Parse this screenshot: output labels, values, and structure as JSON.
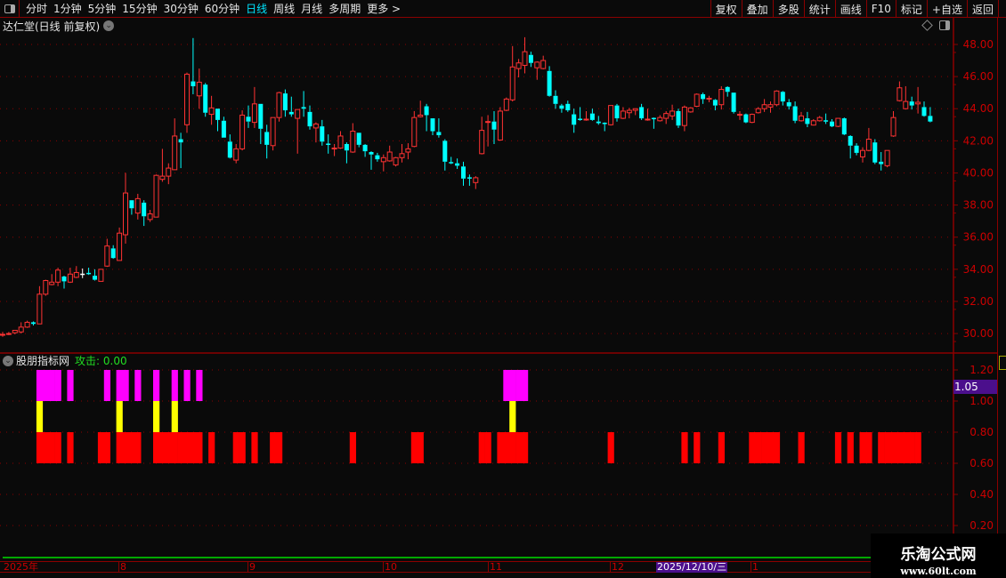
{
  "toolbar": {
    "periods": [
      "分时",
      "1分钟",
      "5分钟",
      "15分钟",
      "30分钟",
      "60分钟",
      "日线",
      "周线",
      "月线",
      "多周期",
      "更多 >"
    ],
    "active_period": "日线",
    "right_buttons": [
      "复权",
      "叠加",
      "多股",
      "统计",
      "画线",
      "F10",
      "标记",
      "+自选",
      "返回"
    ]
  },
  "main": {
    "title": "达仁堂(日线 前复权)",
    "price_axis": [
      "48.00",
      "46.00",
      "44.00",
      "42.00",
      "40.00",
      "38.00",
      "36.00",
      "34.00",
      "32.00",
      "30.00"
    ]
  },
  "indicator": {
    "name": "股朋指标网",
    "value_label": "攻击: 0.00",
    "current_value": "1.05",
    "axis": [
      "1.20",
      "1.00",
      "0.80",
      "0.60",
      "0.40",
      "0.20"
    ]
  },
  "date_axis": {
    "labels": [
      "2025年",
      "8",
      "9",
      "10",
      "11",
      "12",
      "1"
    ],
    "cursor_date": "2025/12/10/三"
  },
  "watermark": {
    "name": "乐淘公式网",
    "url": "www.60lt.com"
  },
  "colors": {
    "up": "#ff3333",
    "down": "#00ffff",
    "grid": "#8b0000",
    "magenta": "#ff00ff",
    "yellow": "#ffff00",
    "red": "#ff0000",
    "accent": "#00e5ff"
  },
  "chart_data": {
    "type": "candlestick",
    "ylim": [
      29.2,
      49.0
    ],
    "ohlc": [
      [
        29.9,
        30.1,
        29.8,
        29.95
      ],
      [
        29.95,
        30.1,
        29.9,
        30.0
      ],
      [
        30.05,
        30.2,
        29.95,
        30.2
      ],
      [
        30.1,
        30.7,
        30.0,
        30.4
      ],
      [
        30.4,
        30.8,
        30.35,
        30.7
      ],
      [
        30.7,
        30.75,
        30.5,
        30.6
      ],
      [
        30.6,
        32.95,
        30.6,
        32.45
      ],
      [
        32.45,
        33.35,
        32.35,
        33.3
      ],
      [
        33.05,
        33.7,
        33.0,
        33.2
      ],
      [
        33.2,
        34.1,
        32.95,
        33.95
      ],
      [
        33.55,
        33.6,
        32.8,
        33.25
      ],
      [
        33.2,
        34.1,
        33.15,
        33.7
      ],
      [
        33.5,
        34.2,
        33.45,
        33.8
      ],
      [
        33.7,
        34.05,
        33.45,
        33.7
      ],
      [
        33.75,
        34.1,
        33.65,
        33.7
      ],
      [
        33.6,
        34.0,
        33.3,
        33.35
      ],
      [
        33.25,
        34.0,
        33.25,
        34.0
      ],
      [
        34.2,
        35.9,
        34.15,
        35.45
      ],
      [
        35.3,
        35.5,
        34.65,
        34.7
      ],
      [
        34.55,
        36.6,
        34.55,
        36.25
      ],
      [
        36.15,
        40.0,
        35.6,
        38.75
      ],
      [
        38.3,
        38.3,
        37.4,
        37.8
      ],
      [
        37.5,
        38.7,
        37.1,
        38.4
      ],
      [
        38.15,
        38.3,
        36.7,
        37.3
      ],
      [
        37.1,
        37.7,
        36.95,
        37.45
      ],
      [
        37.25,
        39.9,
        37.25,
        39.85
      ],
      [
        39.6,
        41.5,
        39.45,
        39.8
      ],
      [
        39.8,
        40.6,
        39.3,
        40.3
      ],
      [
        40.2,
        43.4,
        40.2,
        42.3
      ],
      [
        42.1,
        42.5,
        40.3,
        41.9
      ],
      [
        43.0,
        46.25,
        42.5,
        46.15
      ],
      [
        45.7,
        48.4,
        44.9,
        45.4
      ],
      [
        44.8,
        46.5,
        44.0,
        45.65
      ],
      [
        45.5,
        45.6,
        43.5,
        43.75
      ],
      [
        43.65,
        44.8,
        43.0,
        44.05
      ],
      [
        44.0,
        44.0,
        42.6,
        43.3
      ],
      [
        43.25,
        43.5,
        42.2,
        42.2
      ],
      [
        41.95,
        42.4,
        40.9,
        40.95
      ],
      [
        40.8,
        41.8,
        40.6,
        41.5
      ],
      [
        41.5,
        43.9,
        41.4,
        43.6
      ],
      [
        43.5,
        44.2,
        42.8,
        43.2
      ],
      [
        43.15,
        45.35,
        42.8,
        44.3
      ],
      [
        44.3,
        44.3,
        41.8,
        42.75
      ],
      [
        42.55,
        43.0,
        40.9,
        41.75
      ],
      [
        41.7,
        43.45,
        41.4,
        43.45
      ],
      [
        43.45,
        45.05,
        43.2,
        45.0
      ],
      [
        44.95,
        45.2,
        43.5,
        43.9
      ],
      [
        43.8,
        44.75,
        43.5,
        43.65
      ],
      [
        43.4,
        43.95,
        41.2,
        43.95
      ],
      [
        44.1,
        45.1,
        43.5,
        44.0
      ],
      [
        43.8,
        44.2,
        42.7,
        42.9
      ],
      [
        42.8,
        43.15,
        41.9,
        43.05
      ],
      [
        42.9,
        43.3,
        41.7,
        41.95
      ],
      [
        41.8,
        42.4,
        41.2,
        41.75
      ],
      [
        41.5,
        41.8,
        41.05,
        41.55
      ],
      [
        41.55,
        42.6,
        41.5,
        42.3
      ],
      [
        41.8,
        41.9,
        40.6,
        41.4
      ],
      [
        41.3,
        43.1,
        41.25,
        42.6
      ],
      [
        42.5,
        42.5,
        41.6,
        41.75
      ],
      [
        41.75,
        41.8,
        41.0,
        41.35
      ],
      [
        41.3,
        41.35,
        40.2,
        41.15
      ],
      [
        41.1,
        41.25,
        40.7,
        40.85
      ],
      [
        40.7,
        41.15,
        40.1,
        40.95
      ],
      [
        40.75,
        41.7,
        40.7,
        41.3
      ],
      [
        40.5,
        41.0,
        40.4,
        40.95
      ],
      [
        40.95,
        41.8,
        40.65,
        41.2
      ],
      [
        41.3,
        41.85,
        40.85,
        41.5
      ],
      [
        41.65,
        43.85,
        41.6,
        43.45
      ],
      [
        43.5,
        44.5,
        43.45,
        43.6
      ],
      [
        44.15,
        44.3,
        42.6,
        43.6
      ],
      [
        43.4,
        43.4,
        42.35,
        42.6
      ],
      [
        42.55,
        43.4,
        42.2,
        42.35
      ],
      [
        42.0,
        42.1,
        40.15,
        40.7
      ],
      [
        40.65,
        41.0,
        40.55,
        40.6
      ],
      [
        40.6,
        40.9,
        40.25,
        40.45
      ],
      [
        40.4,
        40.7,
        39.2,
        39.65
      ],
      [
        39.7,
        39.9,
        39.2,
        39.65
      ],
      [
        39.4,
        39.8,
        39.0,
        39.7
      ],
      [
        41.2,
        43.5,
        41.15,
        42.65
      ],
      [
        43.15,
        43.6,
        41.65,
        43.2
      ],
      [
        43.2,
        43.85,
        41.8,
        42.7
      ],
      [
        42.05,
        44.1,
        42.0,
        43.85
      ],
      [
        43.9,
        44.7,
        43.85,
        44.6
      ],
      [
        44.55,
        47.9,
        44.45,
        46.6
      ],
      [
        46.5,
        47.1,
        45.95,
        46.85
      ],
      [
        46.7,
        48.45,
        46.2,
        47.55
      ],
      [
        47.35,
        47.55,
        46.6,
        46.85
      ],
      [
        46.55,
        46.95,
        45.8,
        46.9
      ],
      [
        46.5,
        47.3,
        46.45,
        47.0
      ],
      [
        46.35,
        46.65,
        44.75,
        44.8
      ],
      [
        44.8,
        45.15,
        44.0,
        44.3
      ],
      [
        44.2,
        44.3,
        43.75,
        44.0
      ],
      [
        44.3,
        44.5,
        43.8,
        43.9
      ],
      [
        43.65,
        44.0,
        42.5,
        43.0
      ],
      [
        43.35,
        44.1,
        43.25,
        43.3
      ],
      [
        43.3,
        43.85,
        43.25,
        43.35
      ],
      [
        43.7,
        44.0,
        43.25,
        43.3
      ],
      [
        43.2,
        43.55,
        43.0,
        43.1
      ],
      [
        43.1,
        43.15,
        42.6,
        43.05
      ],
      [
        43.0,
        44.2,
        42.95,
        44.2
      ],
      [
        44.2,
        44.3,
        43.2,
        43.4
      ],
      [
        43.4,
        44.1,
        43.35,
        43.85
      ],
      [
        43.75,
        44.05,
        43.4,
        43.9
      ],
      [
        43.9,
        44.0,
        43.6,
        44.0
      ],
      [
        44.1,
        44.3,
        43.3,
        43.4
      ],
      [
        43.3,
        44.0,
        43.25,
        43.35
      ],
      [
        43.4,
        43.45,
        42.75,
        43.35
      ],
      [
        43.25,
        43.6,
        43.2,
        43.45
      ],
      [
        43.4,
        43.85,
        43.05,
        43.7
      ],
      [
        43.55,
        44.25,
        43.3,
        43.85
      ],
      [
        43.85,
        44.0,
        42.8,
        42.95
      ],
      [
        42.95,
        44.2,
        42.6,
        44.1
      ],
      [
        43.8,
        44.1,
        43.75,
        44.05
      ],
      [
        44.15,
        44.95,
        44.1,
        44.9
      ],
      [
        44.9,
        45.0,
        44.3,
        44.6
      ],
      [
        44.6,
        44.8,
        44.4,
        44.65
      ],
      [
        44.55,
        44.6,
        43.9,
        44.2
      ],
      [
        44.25,
        45.4,
        43.95,
        45.2
      ],
      [
        45.35,
        45.4,
        44.75,
        45.05
      ],
      [
        45.0,
        45.0,
        43.7,
        43.8
      ],
      [
        43.6,
        43.85,
        43.3,
        43.65
      ],
      [
        43.65,
        43.7,
        43.1,
        43.15
      ],
      [
        43.15,
        43.7,
        43.1,
        43.65
      ],
      [
        43.75,
        44.1,
        43.7,
        44.0
      ],
      [
        44.0,
        44.6,
        43.8,
        44.25
      ],
      [
        44.1,
        44.45,
        43.75,
        44.25
      ],
      [
        44.25,
        45.15,
        44.15,
        45.1
      ],
      [
        45.05,
        45.1,
        44.2,
        44.45
      ],
      [
        44.4,
        44.6,
        43.95,
        44.15
      ],
      [
        44.15,
        44.45,
        43.1,
        43.25
      ],
      [
        43.25,
        43.8,
        43.2,
        43.55
      ],
      [
        43.4,
        43.8,
        42.85,
        43.05
      ],
      [
        42.98,
        43.35,
        42.95,
        43.25
      ],
      [
        43.25,
        43.55,
        43.2,
        43.45
      ],
      [
        43.25,
        43.7,
        43.05,
        43.2
      ],
      [
        43.2,
        43.35,
        42.85,
        42.9
      ],
      [
        42.9,
        43.4,
        42.85,
        43.4
      ],
      [
        43.4,
        43.45,
        42.35,
        42.4
      ],
      [
        42.3,
        42.35,
        40.9,
        41.7
      ],
      [
        41.7,
        41.85,
        41.1,
        41.25
      ],
      [
        41.0,
        41.6,
        40.65,
        41.4
      ],
      [
        41.4,
        42.8,
        41.35,
        42.1
      ],
      [
        41.9,
        42.1,
        40.55,
        40.65
      ],
      [
        40.7,
        41.3,
        40.15,
        40.55
      ],
      [
        40.45,
        41.4,
        40.35,
        41.4
      ],
      [
        42.3,
        43.85,
        42.25,
        43.45
      ],
      [
        44.5,
        45.7,
        44.45,
        45.3
      ],
      [
        44.0,
        45.4,
        43.95,
        44.45
      ],
      [
        44.45,
        44.75,
        43.95,
        44.2
      ],
      [
        44.3,
        45.35,
        43.7,
        44.4
      ],
      [
        44.1,
        44.45,
        43.5,
        43.55
      ],
      [
        43.55,
        44.1,
        43.15,
        43.2
      ]
    ],
    "indicator_signals": {
      "magenta_1.0_to_1.2": [
        7,
        8,
        9,
        10,
        12,
        18,
        20,
        21,
        23,
        26,
        29,
        31,
        33,
        83,
        84,
        85,
        86
      ],
      "yellow_0.8_to_1.0": [
        7,
        20,
        26,
        29,
        84
      ],
      "red_0.6_to_0.8": [
        7,
        8,
        9,
        10,
        12,
        17,
        18,
        20,
        21,
        22,
        23,
        26,
        27,
        28,
        29,
        30,
        31,
        32,
        33,
        35,
        39,
        40,
        42,
        45,
        46,
        58,
        68,
        69,
        79,
        80,
        82,
        83,
        84,
        85,
        86,
        100,
        112,
        114,
        118,
        123,
        124,
        125,
        126,
        127,
        131,
        137,
        139,
        141,
        142,
        144,
        145,
        146,
        147,
        148,
        149,
        150
      ]
    }
  }
}
